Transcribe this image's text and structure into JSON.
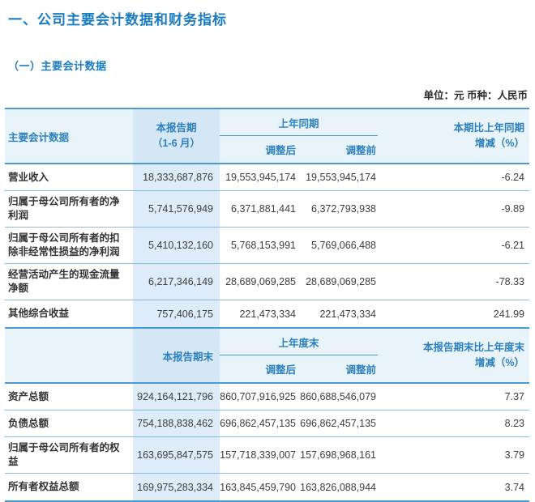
{
  "page": {
    "title": "一、公司主要会计数据和财务指标",
    "subtitle": "（一）主要会计数据",
    "unit_note": "单位：元  币种：人民币"
  },
  "colors": {
    "title_blue": "#1a7cc0",
    "header_text_blue": "#2b80bd",
    "header_bg": "#e9f3fa",
    "highlight_column_bg_header": "#d5e7f4",
    "highlight_column_bg_row": "#ddecf8",
    "strong_line": "#4a9ad2",
    "row_separator": "#85bce0",
    "body_text": "#3c3c3c"
  },
  "table1": {
    "header": {
      "label": "主要会计数据",
      "current_line1": "本报告期",
      "current_line2": "（1-6 月）",
      "group_label": "上年同期",
      "sub_adjusted": "调整后",
      "sub_before": "调整前",
      "change_line1": "本期比上年同期",
      "change_line2": "增减（%）"
    },
    "rows": [
      {
        "label": "营业收入",
        "current": "18,333,687,876",
        "adjusted": "19,553,945,174",
        "before": "19,553,945,174",
        "change": "-6.24"
      },
      {
        "label": "归属于母公司所有者的净利润",
        "current": "5,741,576,949",
        "adjusted": "6,371,881,441",
        "before": "6,372,793,938",
        "change": "-9.89"
      },
      {
        "label": "归属于母公司所有者的扣除非经常性损益的净利润",
        "current": "5,410,132,160",
        "adjusted": "5,768,153,991",
        "before": "5,769,066,488",
        "change": "-6.21"
      },
      {
        "label": "经营活动产生的现金流量净额",
        "current": "6,217,346,149",
        "adjusted": "28,689,069,285",
        "before": "28,689,069,285",
        "change": "-78.33"
      },
      {
        "label": "其他综合收益",
        "current": "757,406,175",
        "adjusted": "221,473,334",
        "before": "221,473,334",
        "change": "241.99"
      }
    ]
  },
  "table2": {
    "header": {
      "label": "",
      "current_line1": "本报告期末",
      "current_line2": "",
      "group_label": "上年度末",
      "sub_adjusted": "调整后",
      "sub_before": "调整前",
      "change_line1": "本报告期末比上年度末",
      "change_line2": "增减（%）"
    },
    "rows": [
      {
        "label": "资产总额",
        "current": "924,164,121,796",
        "adjusted": "860,707,916,925",
        "before": "860,688,546,079",
        "change": "7.37"
      },
      {
        "label": "负债总额",
        "current": "754,188,838,462",
        "adjusted": "696,862,457,135",
        "before": "696,862,457,135",
        "change": "8.23"
      },
      {
        "label": "归属于母公司所有者的权益",
        "current": "163,695,847,575",
        "adjusted": "157,718,339,007",
        "before": "157,698,968,161",
        "change": "3.79"
      },
      {
        "label": "所有者权益总额",
        "current": "169,975,283,334",
        "adjusted": "163,845,459,790",
        "before": "163,826,088,944",
        "change": "3.74"
      }
    ]
  }
}
